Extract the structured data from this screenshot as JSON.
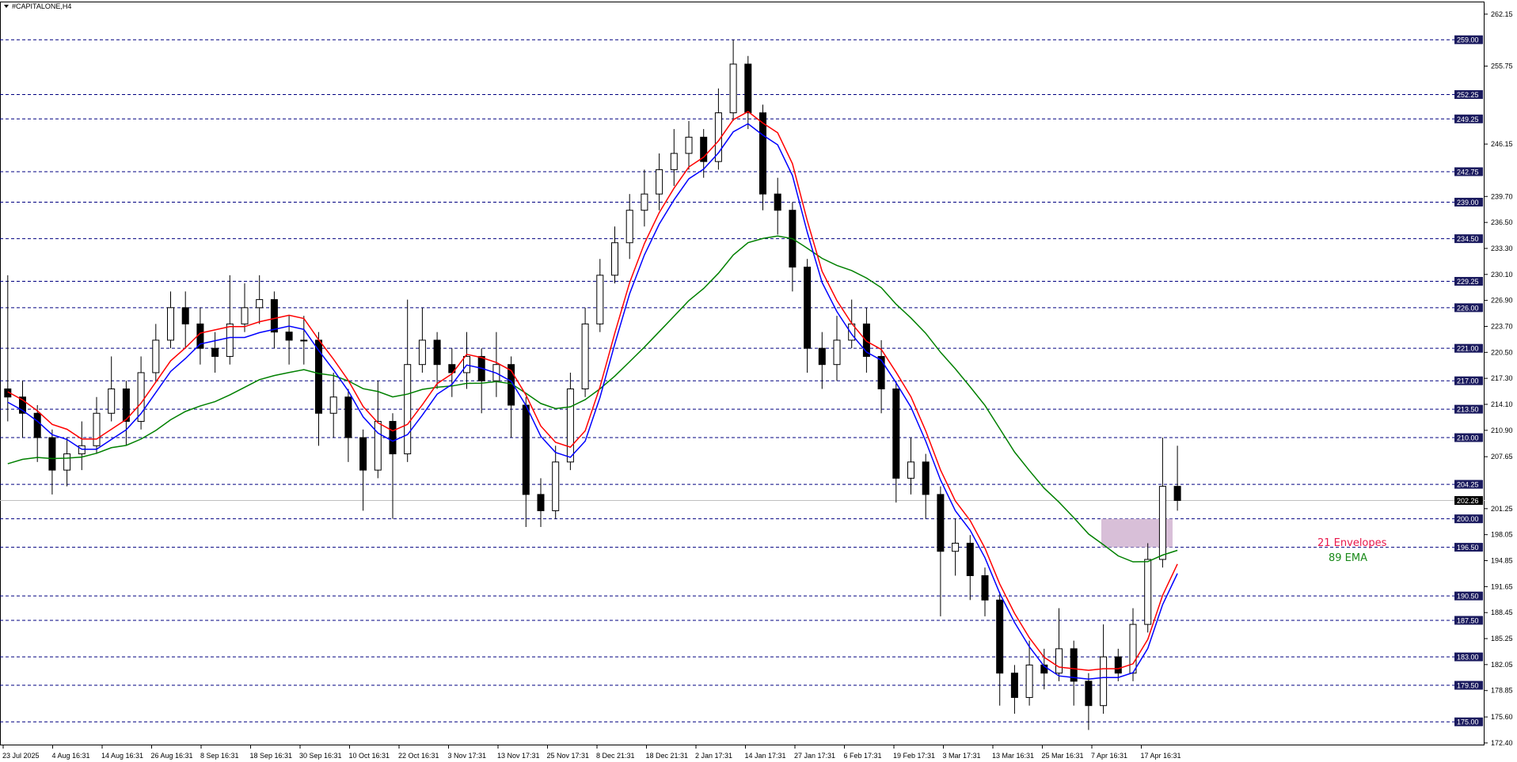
{
  "window": {
    "title": "#CAPITALONE,H4",
    "menu_icon": "triangle-down-icon"
  },
  "chart_data": {
    "type": "candlestick",
    "title": "#CAPITALONE,H4",
    "ylim": [
      172.1,
      263.6
    ],
    "grid": false,
    "colors": {
      "level_line": "#000080",
      "level_label_bg": "#1a1a5e",
      "current_price_label_bg": "#000000",
      "current_price_line": "#c0c0c0",
      "envelope_upper": "#ff0000",
      "envelope_lower": "#0000ff",
      "ema": "#008000",
      "zone": "#d8bfd8",
      "bull_body": "#ffffff",
      "bear_body": "#000000"
    },
    "ohlc": {
      "o": [
        216,
        215,
        213,
        210,
        206,
        208,
        209,
        213,
        216,
        212,
        218,
        222,
        226,
        224,
        221,
        220,
        224,
        226,
        227,
        223,
        222,
        222,
        213,
        215,
        210,
        206,
        212,
        208,
        219,
        222,
        219,
        218,
        220,
        217,
        219,
        214,
        203,
        201,
        207,
        216,
        224,
        230,
        234,
        238,
        240,
        243,
        245,
        247,
        244,
        250,
        256,
        250,
        240,
        238,
        231,
        221,
        219,
        222,
        224,
        220,
        216,
        205,
        207,
        203,
        196,
        197,
        193,
        190,
        181,
        178,
        182,
        181,
        184,
        180,
        177,
        183,
        181,
        187,
        195,
        204
      ],
      "h": [
        230,
        217,
        214,
        211,
        210,
        212,
        215,
        220,
        217,
        220,
        224,
        228,
        228,
        226,
        223,
        230,
        229,
        230,
        228,
        225,
        225,
        223,
        218,
        216,
        211,
        217,
        213,
        227,
        226,
        223,
        221,
        223,
        221,
        223,
        220,
        215,
        205,
        209,
        218,
        226,
        232,
        236,
        240,
        243,
        245,
        248,
        249,
        248,
        253,
        259,
        257,
        251,
        242,
        239,
        232,
        223,
        225,
        227,
        226,
        222,
        217,
        210,
        208,
        204,
        200,
        198,
        194,
        191,
        182,
        185,
        184,
        189,
        185,
        181,
        187,
        184,
        189,
        197,
        210,
        209
      ],
      "l": [
        212,
        210,
        207,
        203,
        204,
        206,
        208,
        212,
        209,
        211,
        217,
        221,
        221,
        219,
        218,
        219,
        223,
        224,
        221,
        219,
        219,
        209,
        210,
        207,
        201,
        205,
        200,
        207,
        218,
        216,
        215,
        216,
        213,
        215,
        210,
        199,
        199,
        200,
        206,
        215,
        223,
        229,
        232,
        236,
        238,
        241,
        243,
        242,
        243,
        249,
        248,
        238,
        235,
        228,
        218,
        216,
        217,
        221,
        218,
        213,
        202,
        203,
        200,
        188,
        193,
        190,
        188,
        177,
        176,
        177,
        179,
        180,
        177,
        174,
        176,
        180,
        180,
        186,
        194,
        201
      ],
      "c": [
        215,
        213,
        210,
        206,
        208,
        209,
        213,
        216,
        212,
        218,
        222,
        226,
        224,
        221,
        220,
        224,
        226,
        227,
        223,
        222,
        222,
        213,
        215,
        210,
        206,
        212,
        208,
        219,
        222,
        219,
        218,
        220,
        217,
        219,
        214,
        203,
        201,
        207,
        216,
        224,
        230,
        234,
        238,
        240,
        243,
        245,
        247,
        244,
        250,
        256,
        250,
        240,
        238,
        231,
        221,
        219,
        222,
        224,
        220,
        216,
        205,
        207,
        203,
        196,
        197,
        193,
        190,
        181,
        178,
        182,
        181,
        184,
        180,
        177,
        183,
        181,
        187,
        195,
        204,
        202.26
      ]
    },
    "price_levels": [
      "259.00",
      "252.25",
      "249.25",
      "242.75",
      "239.00",
      "234.50",
      "229.25",
      "226.00",
      "221.00",
      "217.00",
      "213.50",
      "210.00",
      "204.25",
      "200.00",
      "196.50",
      "190.50",
      "187.50",
      "183.00",
      "179.50",
      "175.00"
    ],
    "y_ticks": [
      "262.15",
      "255.75",
      "246.15",
      "239.70",
      "236.50",
      "233.30",
      "230.10",
      "226.90",
      "223.70",
      "220.50",
      "217.30",
      "214.10",
      "210.90",
      "207.65",
      "201.25",
      "198.05",
      "194.85",
      "191.65",
      "188.45",
      "185.25",
      "182.05",
      "178.85",
      "175.60",
      "172.40"
    ],
    "current_price": "202.26",
    "zone": [
      196.5,
      200.0
    ],
    "x_labels": [
      "23 Jul 2025",
      "4 Aug 16:31",
      "14 Aug 16:31",
      "26 Aug 16:31",
      "8 Sep 16:31",
      "18 Sep 16:31",
      "30 Sep 16:31",
      "10 Oct 16:31",
      "22 Oct 16:31",
      "3 Nov 17:31",
      "13 Nov 17:31",
      "25 Nov 17:31",
      "8 Dec 21:31",
      "18 Dec 21:31",
      "2 Jan 17:31",
      "14 Jan 17:31",
      "27 Jan 17:31",
      "6 Feb 17:31",
      "19 Feb 17:31",
      "3 Mar 17:31",
      "13 Mar 16:31",
      "25 Mar 16:31",
      "7 Apr 16:31",
      "17 Apr 16:31"
    ],
    "annotations": [
      {
        "text": "21 Envelopes",
        "color": "#e8174a"
      },
      {
        "text": "89 EMA",
        "color": "#1a8a1a"
      }
    ]
  }
}
